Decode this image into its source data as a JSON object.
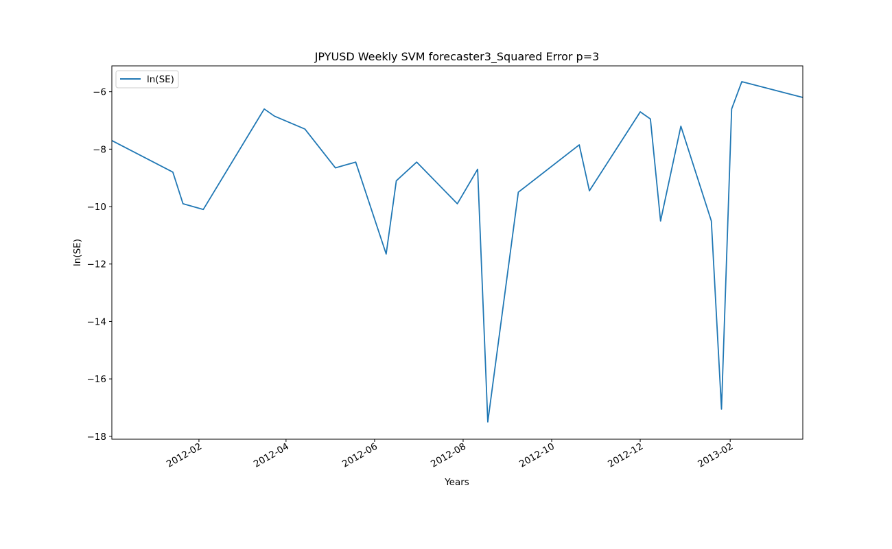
{
  "chart_data": {
    "type": "line",
    "title": "JPYUSD Weekly SVM forecaster3_Squared Error p=3",
    "xlabel": "Years",
    "ylabel": "ln(SE)",
    "xlim": [
      "2011-12-03",
      "2013-03-23"
    ],
    "ylim": [
      -18.1,
      -5.1
    ],
    "y_ticks": [
      -6,
      -8,
      -10,
      -12,
      -14,
      -16,
      -18
    ],
    "x_ticks": [
      {
        "date": "2012-02-01",
        "label": "2012-02"
      },
      {
        "date": "2012-04-01",
        "label": "2012-04"
      },
      {
        "date": "2012-06-01",
        "label": "2012-06"
      },
      {
        "date": "2012-08-01",
        "label": "2012-08"
      },
      {
        "date": "2012-10-01",
        "label": "2012-10"
      },
      {
        "date": "2012-12-01",
        "label": "2012-12"
      },
      {
        "date": "2013-02-01",
        "label": "2013-02"
      }
    ],
    "grid": false,
    "legend": "top-left",
    "color": "#1f77b4",
    "series": [
      {
        "name": "ln(SE)",
        "x": [
          "2011-12-03",
          "2012-01-14",
          "2012-01-21",
          "2012-02-04",
          "2012-03-17",
          "2012-03-24",
          "2012-04-14",
          "2012-05-05",
          "2012-05-19",
          "2012-06-09",
          "2012-06-16",
          "2012-06-30",
          "2012-07-28",
          "2012-08-11",
          "2012-08-18",
          "2012-09-08",
          "2012-10-20",
          "2012-10-27",
          "2012-12-01",
          "2012-12-08",
          "2012-12-15",
          "2012-12-29",
          "2013-01-19",
          "2013-01-26",
          "2013-02-02",
          "2013-02-09",
          "2013-03-23"
        ],
        "values": [
          -7.7,
          -8.8,
          -9.9,
          -10.1,
          -6.6,
          -6.85,
          -7.3,
          -8.65,
          -8.45,
          -11.65,
          -9.1,
          -8.45,
          -9.9,
          -8.7,
          -17.5,
          -9.5,
          -7.85,
          -9.45,
          -6.7,
          -6.95,
          -10.5,
          -7.2,
          -10.5,
          -17.05,
          -6.6,
          -5.65,
          -6.2
        ]
      }
    ]
  }
}
